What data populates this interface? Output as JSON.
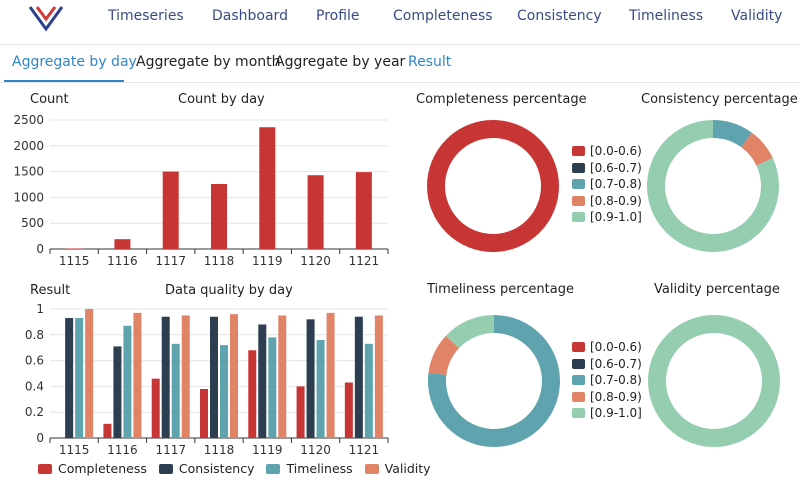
{
  "nav": {
    "logo": "logo-icon",
    "items": [
      "Timeseries",
      "Dashboard",
      "Profile",
      "Completeness",
      "Consistency",
      "Timeliness",
      "Validity"
    ]
  },
  "tabs": [
    "Aggregate by day",
    "Aggregate by month",
    "Aggregate by year",
    "Result"
  ],
  "colors": {
    "completeness": "#c83535",
    "consistency": "#2c3e50",
    "timeliness": "#5ea3ae",
    "validity": "#e08367",
    "accent": "#2f86c7",
    "bucket_0": "#c83535",
    "bucket_1": "#2c3e50",
    "bucket_2": "#5ea3ae",
    "bucket_3": "#e08367",
    "bucket_4": "#95cdb1"
  },
  "chart_data": [
    {
      "type": "bar",
      "title": "Count by day",
      "ylabel": "Count",
      "categories": [
        "1115",
        "1116",
        "1117",
        "1118",
        "1119",
        "1120",
        "1121"
      ],
      "values": [
        10,
        190,
        1500,
        1260,
        2360,
        1430,
        1490
      ],
      "ylim": [
        0,
        2500
      ],
      "yticks": [
        0,
        500,
        1000,
        1500,
        2000,
        2500
      ]
    },
    {
      "type": "bar",
      "title": "Data quality by day",
      "ylabel": "Result",
      "categories": [
        "1115",
        "1116",
        "1117",
        "1118",
        "1119",
        "1120",
        "1121"
      ],
      "ylim": [
        0,
        1
      ],
      "yticks": [
        "0",
        "0.2",
        "0.4",
        "0.6",
        "0.8",
        "1"
      ],
      "series": [
        {
          "name": "Completeness",
          "values": [
            0,
            0.11,
            0.46,
            0.38,
            0.68,
            0.4,
            0.43
          ]
        },
        {
          "name": "Consistency",
          "values": [
            0.93,
            0.71,
            0.94,
            0.94,
            0.88,
            0.92,
            0.94
          ]
        },
        {
          "name": "Timeliness",
          "values": [
            0.93,
            0.87,
            0.73,
            0.72,
            0.78,
            0.76,
            0.73
          ]
        },
        {
          "name": "Validity",
          "values": [
            1.0,
            0.97,
            0.95,
            0.96,
            0.95,
            0.97,
            0.95
          ]
        }
      ]
    },
    {
      "type": "pie",
      "title": "Completeness percentage",
      "labels": [
        "[0.0-0.6)",
        "[0.6-0.7)",
        "[0.7-0.8)",
        "[0.8-0.9)",
        "[0.9-1.0]"
      ],
      "values": [
        100,
        0,
        0,
        0,
        0
      ]
    },
    {
      "type": "pie",
      "title": "Consistency  percentage",
      "labels": [
        "[0.0-0.6)",
        "[0.6-0.7)",
        "[0.7-0.8)",
        "[0.8-0.9)",
        "[0.9-1.0]"
      ],
      "values": [
        0,
        0,
        10,
        8,
        82
      ]
    },
    {
      "type": "pie",
      "title": "Timeliness percentage",
      "labels": [
        "[0.0-0.6)",
        "[0.6-0.7)",
        "[0.7-0.8)",
        "[0.8-0.9)",
        "[0.9-1.0]"
      ],
      "values": [
        0,
        0,
        77,
        10,
        13
      ]
    },
    {
      "type": "pie",
      "title": "Validity  percentage",
      "labels": [
        "[0.0-0.6)",
        "[0.6-0.7)",
        "[0.7-0.8)",
        "[0.8-0.9)",
        "[0.9-1.0]"
      ],
      "values": [
        0,
        0,
        0,
        0,
        100
      ]
    }
  ]
}
